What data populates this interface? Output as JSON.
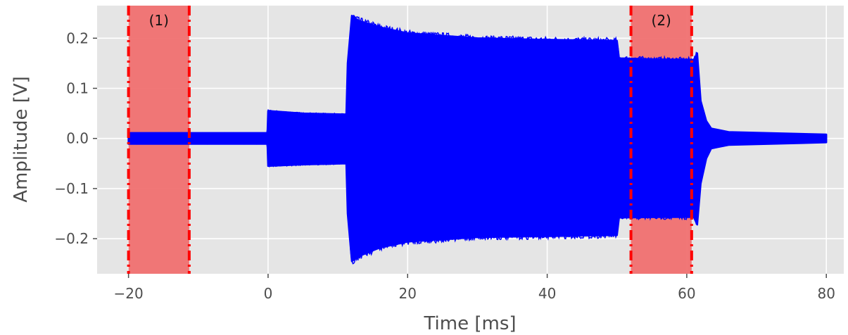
{
  "chart_data": {
    "type": "line",
    "title": "",
    "xlabel": "Time [ms]",
    "ylabel": "Amplitude [V]",
    "xlim": [
      -24.5,
      82.5
    ],
    "ylim": [
      -0.27,
      0.265
    ],
    "x_ticks": [
      -20,
      0,
      20,
      40,
      60,
      80
    ],
    "x_tick_labels": [
      "−20",
      "0",
      "20",
      "40",
      "60",
      "80"
    ],
    "y_ticks": [
      -0.2,
      -0.1,
      0.0,
      0.1,
      0.2
    ],
    "y_tick_labels": [
      "−0.2",
      "−0.1",
      "0.0",
      "0.1",
      "0.2"
    ],
    "grid": true,
    "series": [
      {
        "color": "#0000ff",
        "description": "oscillating signal envelope (upper / lower bounds)",
        "envelope": [
          {
            "x": -20.0,
            "upper": 0.011,
            "lower": -0.011
          },
          {
            "x": -0.1,
            "upper": 0.011,
            "lower": -0.011
          },
          {
            "x": 0.0,
            "upper": 0.055,
            "lower": -0.055
          },
          {
            "x": 5.0,
            "upper": 0.05,
            "lower": -0.052
          },
          {
            "x": 11.2,
            "upper": 0.048,
            "lower": -0.05
          },
          {
            "x": 11.4,
            "upper": 0.15,
            "lower": -0.15
          },
          {
            "x": 12.0,
            "upper": 0.245,
            "lower": -0.245
          },
          {
            "x": 13.0,
            "upper": 0.235,
            "lower": -0.235
          },
          {
            "x": 16.0,
            "upper": 0.222,
            "lower": -0.218
          },
          {
            "x": 20.0,
            "upper": 0.21,
            "lower": -0.206
          },
          {
            "x": 30.0,
            "upper": 0.2,
            "lower": -0.197
          },
          {
            "x": 40.0,
            "upper": 0.197,
            "lower": -0.195
          },
          {
            "x": 50.0,
            "upper": 0.195,
            "lower": -0.193
          },
          {
            "x": 50.3,
            "upper": 0.16,
            "lower": -0.158
          },
          {
            "x": 56.0,
            "upper": 0.158,
            "lower": -0.157
          },
          {
            "x": 61.0,
            "upper": 0.157,
            "lower": -0.157
          },
          {
            "x": 61.5,
            "upper": 0.17,
            "lower": -0.172
          },
          {
            "x": 62.0,
            "upper": 0.075,
            "lower": -0.09
          },
          {
            "x": 62.8,
            "upper": 0.035,
            "lower": -0.04
          },
          {
            "x": 63.5,
            "upper": 0.02,
            "lower": -0.02
          },
          {
            "x": 66.0,
            "upper": 0.013,
            "lower": -0.013
          },
          {
            "x": 80.0,
            "upper": 0.008,
            "lower": -0.008
          }
        ]
      }
    ],
    "regions": [
      {
        "label": "(1)",
        "x_start": -20.0,
        "x_end": -11.3,
        "fill": "#f07070",
        "line_color": "#ff0000",
        "line_style": "dashdot"
      },
      {
        "label": "(2)",
        "x_start": 52.0,
        "x_end": 60.7,
        "fill": "#f07070",
        "line_color": "#ff0000",
        "line_style": "dashdot"
      }
    ],
    "colors": {
      "background": "#e5e5e5",
      "grid": "#ffffff",
      "text": "#4d4d4d"
    }
  }
}
